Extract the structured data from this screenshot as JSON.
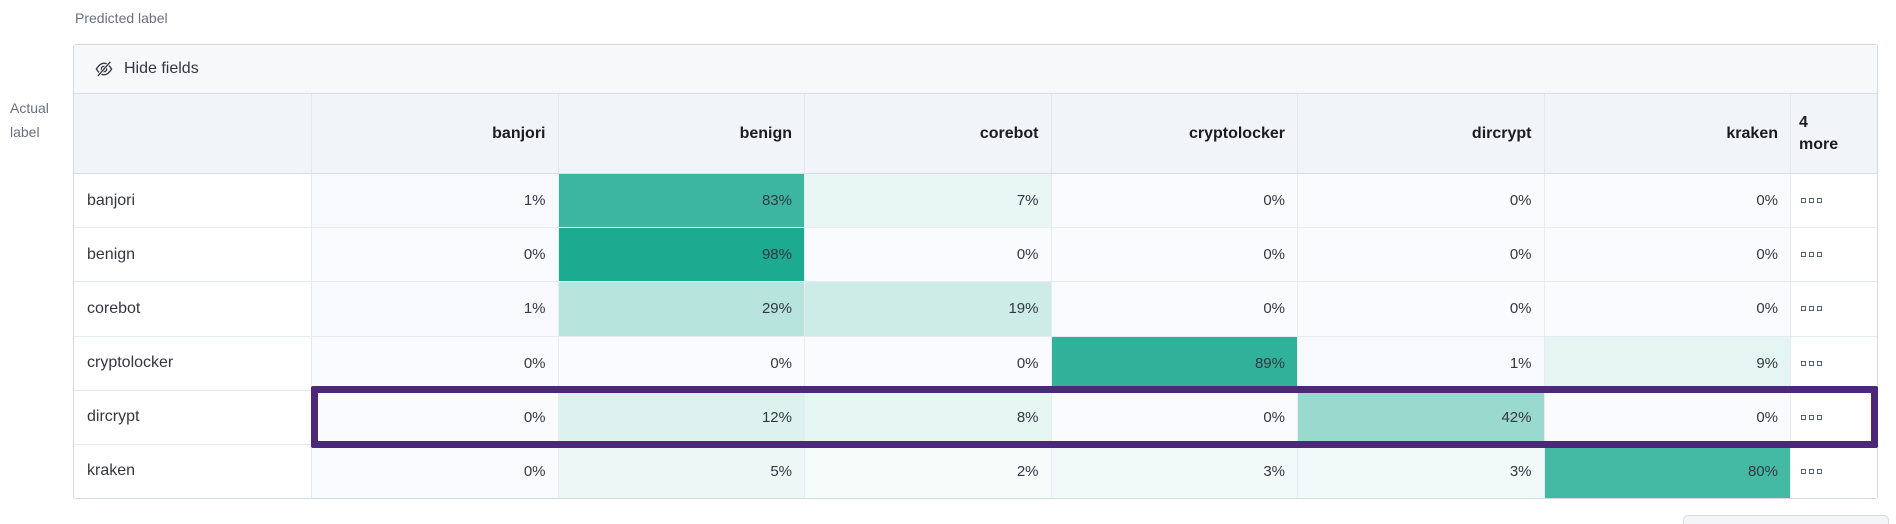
{
  "axes": {
    "predicted_label": "Predicted label",
    "actual_label": "Actual label"
  },
  "toolbar": {
    "hide_fields_label": "Hide fields",
    "icon": "eye-closed-icon"
  },
  "more_column": {
    "line1": "4",
    "line2": "more",
    "cell_icon": "boxes-horizontal-icon"
  },
  "colors": {
    "heat_base": "#17a88e",
    "zero_cell": "#fafbfe",
    "one_cell": "#f7f9fc",
    "highlight": "#4b2878",
    "header_bg": "#f1f4f9",
    "toolbar_bg": "#f6f8fa",
    "panel_border": "#d3dae6",
    "text": "#343741",
    "muted_text": "#69707d"
  },
  "chart_data": {
    "type": "heatmap",
    "xlabel": "Predicted label",
    "ylabel": "Actual label",
    "columns": [
      "banjori",
      "benign",
      "corebot",
      "cryptolocker",
      "dircrypt",
      "kraken"
    ],
    "hidden_columns_count": 4,
    "value_suffix": "%",
    "value_range": [
      0,
      100
    ],
    "rows": [
      {
        "label": "banjori",
        "values": [
          1,
          83,
          7,
          0,
          0,
          0
        ]
      },
      {
        "label": "benign",
        "values": [
          0,
          98,
          0,
          0,
          0,
          0
        ]
      },
      {
        "label": "corebot",
        "values": [
          1,
          29,
          19,
          0,
          0,
          0
        ]
      },
      {
        "label": "cryptolocker",
        "values": [
          0,
          0,
          0,
          89,
          1,
          9
        ]
      },
      {
        "label": "dircrypt",
        "values": [
          0,
          12,
          8,
          0,
          42,
          0
        ]
      },
      {
        "label": "kraken",
        "values": [
          0,
          5,
          2,
          3,
          3,
          80
        ]
      }
    ],
    "highlighted_row": "dircrypt",
    "legend": "none",
    "grid": "on"
  }
}
